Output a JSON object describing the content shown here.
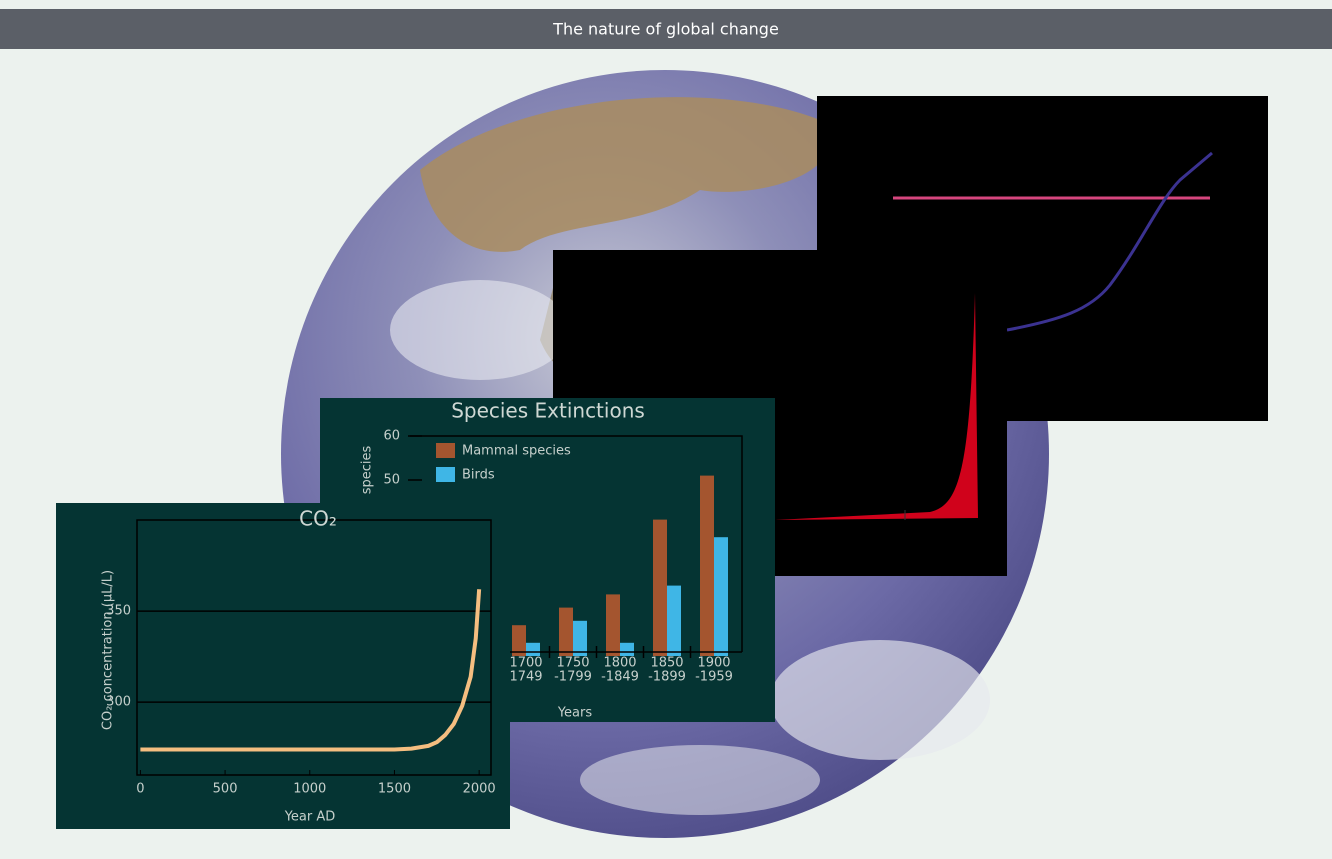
{
  "header": {
    "title": "The nature of global change"
  },
  "chart_data": [
    {
      "type": "bar",
      "title": "Species Extinctions",
      "y_label": "species",
      "x_label": "Years",
      "categories": [
        [
          "1700",
          "1749"
        ],
        [
          "1750",
          "-1799"
        ],
        [
          "1800",
          "-1849"
        ],
        [
          "1850",
          "-1899"
        ],
        [
          "1900",
          "-1959"
        ]
      ],
      "series": [
        {
          "name": "Mammal species",
          "color": "#a4552f",
          "values": [
            17,
            21,
            24,
            41,
            51
          ]
        },
        {
          "name": "Birds",
          "color": "#3fb6e6",
          "values": [
            13,
            18,
            13,
            26,
            37
          ]
        }
      ],
      "ylim": [
        10,
        60
      ],
      "yticks": [
        50,
        60
      ]
    },
    {
      "type": "line",
      "title": "CO₂",
      "y_label": "CO₂ concentration (µL/L)",
      "x_label": "Year AD",
      "x": [
        0,
        1000,
        1500,
        1600,
        1700,
        1750,
        1800,
        1850,
        1900,
        1950,
        1980,
        2000
      ],
      "series": [
        {
          "color": "#f5be80",
          "values": [
            274,
            274,
            274,
            274.5,
            276,
            278,
            282,
            288,
            298,
            314,
            335,
            362
          ]
        }
      ],
      "xlim": [
        -20,
        2070
      ],
      "xticks": [
        0,
        500,
        1000,
        1500,
        2000
      ],
      "ylim": [
        260,
        400
      ],
      "yticks": [
        300,
        350
      ],
      "grid": true
    }
  ]
}
